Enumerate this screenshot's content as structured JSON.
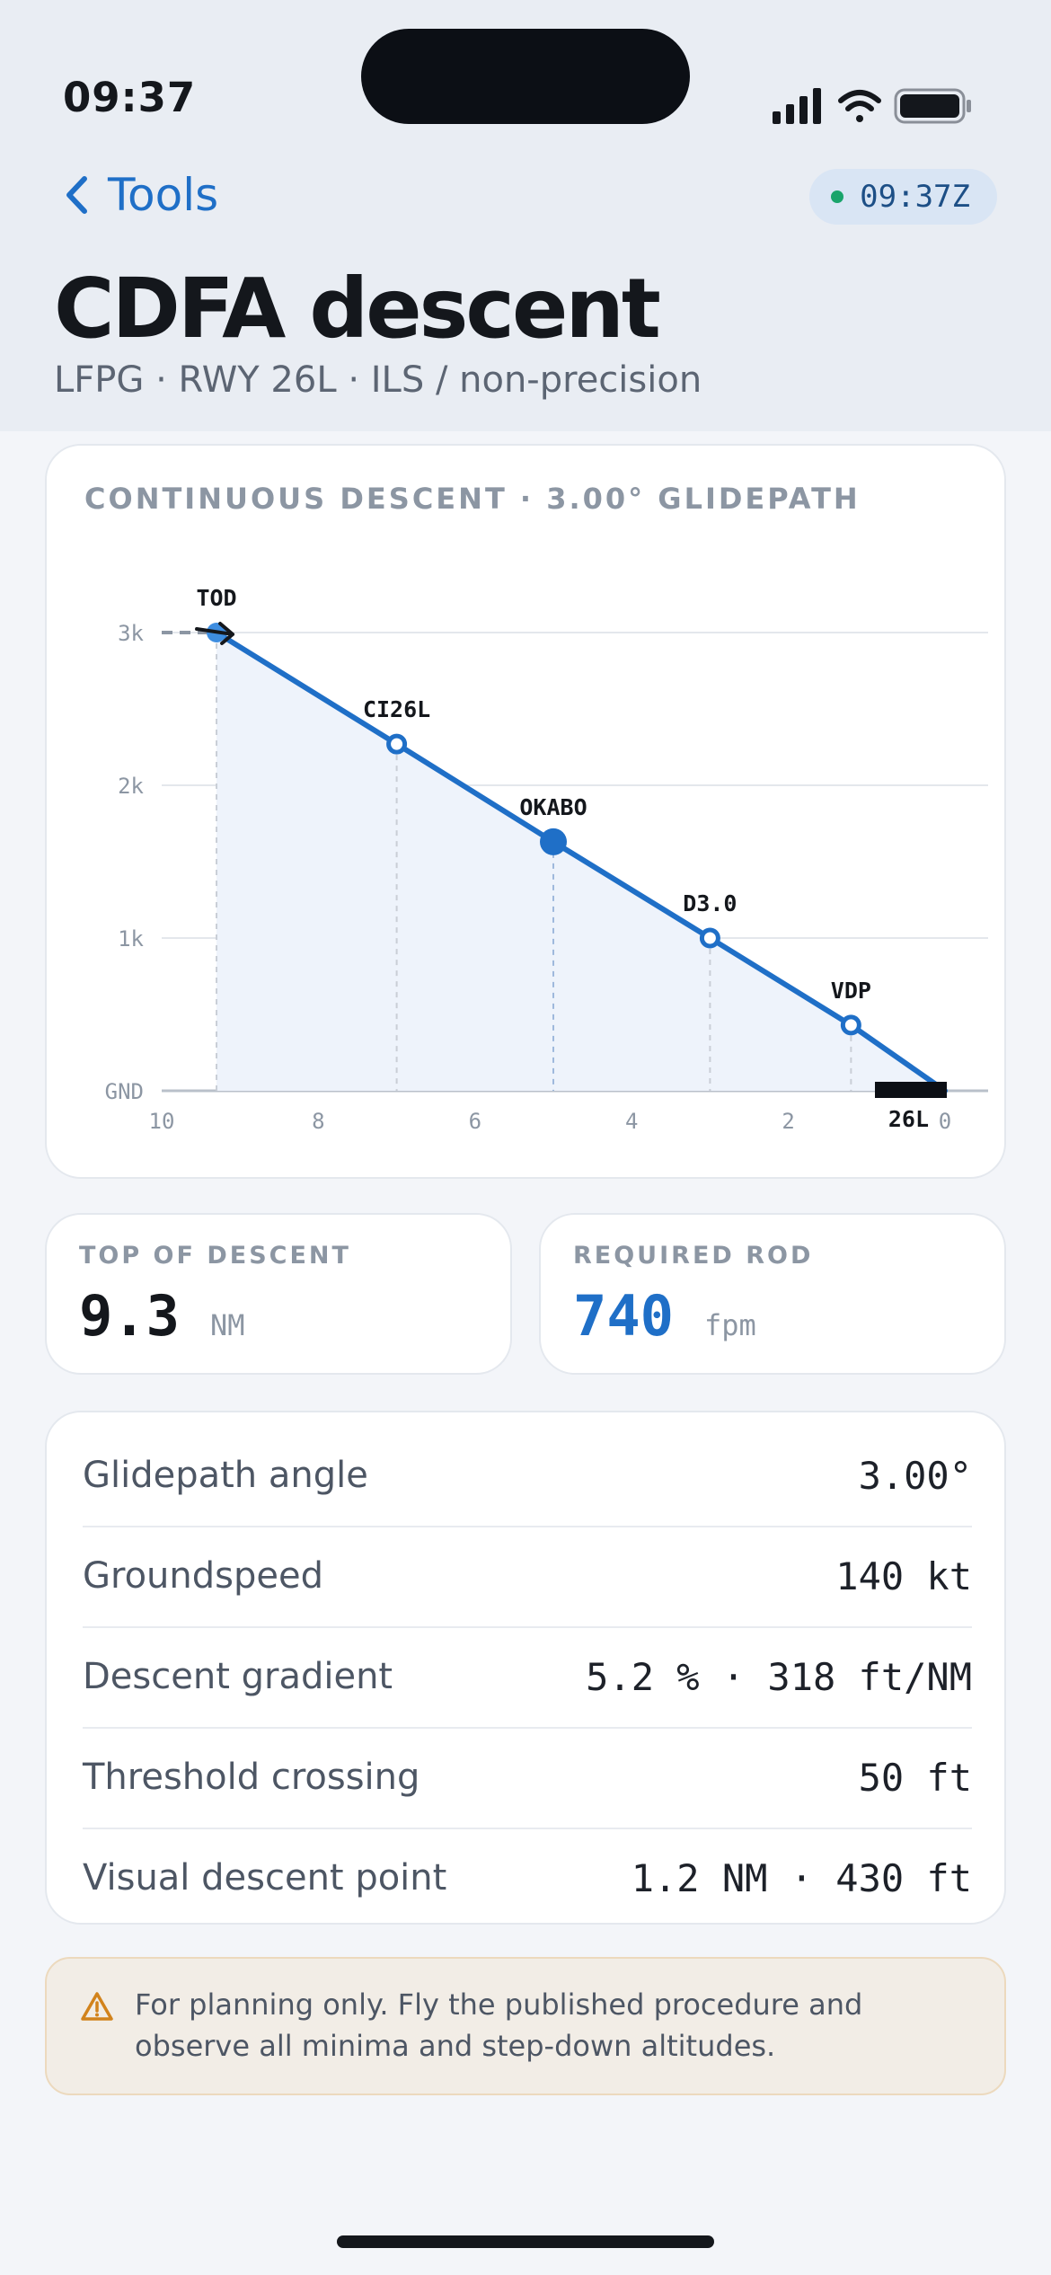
{
  "status_bar": {
    "time": "09:37"
  },
  "nav": {
    "back_label": "Tools",
    "utc_clock": "09:37Z"
  },
  "page": {
    "title": "CDFA descent",
    "subtitle": "LFPG · RWY 26L · ILS / non-precision"
  },
  "profile_chart": {
    "label": "CONTINUOUS DESCENT · 3.00° GLIDEPATH",
    "colors": {
      "path": "#1f6fc7",
      "fill": "#eef3fb",
      "grid": "#e4e7ec"
    }
  },
  "chart_data": {
    "type": "line",
    "title": "CONTINUOUS DESCENT · 3.00° GLIDEPATH",
    "x_axis": {
      "unit": "NM",
      "reversed": true,
      "range": [
        10,
        0
      ],
      "ticks": [
        10,
        8,
        6,
        4,
        2,
        0
      ]
    },
    "y_axis": {
      "unit": "ft",
      "range": [
        0,
        3000
      ],
      "ticks": [
        0,
        1000,
        2000,
        3000
      ],
      "tick_labels": [
        "GND",
        "1k",
        "2k",
        "3k"
      ]
    },
    "grid": true,
    "series": [
      {
        "x": [
          9.3,
          7.0,
          5.0,
          3.0,
          1.2,
          0.0
        ],
        "y": [
          3000,
          2270,
          1630,
          1000,
          430,
          0
        ]
      }
    ],
    "points": [
      {
        "label": "TOD",
        "x": 9.3,
        "y": 3000,
        "marker": "filled"
      },
      {
        "label": "CI26L",
        "x": 7.0,
        "y": 2270,
        "marker": "open"
      },
      {
        "label": "OKABO",
        "x": 5.0,
        "y": 1630,
        "marker": "filled-large"
      },
      {
        "label": "D3.0",
        "x": 3.0,
        "y": 1000,
        "marker": "open"
      },
      {
        "label": "VDP",
        "x": 1.2,
        "y": 430,
        "marker": "open"
      }
    ],
    "runway_label": "26L"
  },
  "stats": {
    "top_of_descent": {
      "label": "TOP OF DESCENT",
      "value": "9.3",
      "unit": "NM"
    },
    "required_rod": {
      "label": "REQUIRED ROD",
      "value": "740",
      "unit": "fpm"
    }
  },
  "params": [
    {
      "label": "Glidepath angle",
      "value": "3.00°"
    },
    {
      "label": "Groundspeed",
      "value": "140 kt"
    },
    {
      "label": "Descent gradient",
      "value": "5.2 % · 318 ft/NM"
    },
    {
      "label": "Threshold crossing",
      "value": "50 ft"
    },
    {
      "label": "Visual descent point",
      "value": "1.2 NM · 430 ft"
    }
  ],
  "disclaimer": "For planning only. Fly the published procedure and observe all minima and step-down altitudes."
}
